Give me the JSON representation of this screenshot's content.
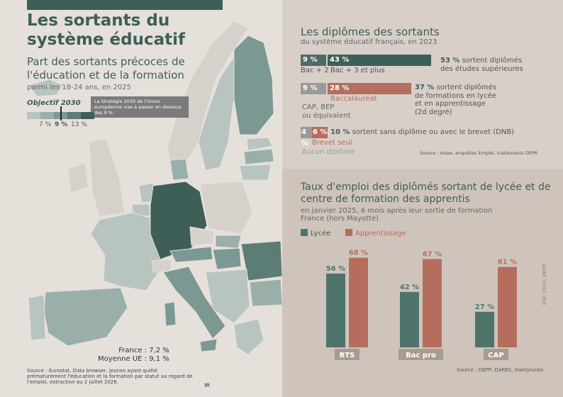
{
  "left": {
    "title": "Les sortants du système éducatif",
    "subtitle": "Part des sortants précoces de l'éducation et de la formation",
    "subnote": "parmi les 18-24 ans, en 2025",
    "objective_label": "Objectif 2030",
    "tooltip": "La Stratégie 2030 de l'Union européenne vise à passer en dessous des 9 %.",
    "legend_labels": [
      "7 %",
      "9 %",
      "13 %"
    ],
    "legend_colors": [
      "#b8c4c0",
      "#9aaeaa",
      "#7c9893",
      "#5c7c76",
      "#3d5f58"
    ],
    "france": "France : 7,2 %",
    "moyenne": "Moyenne UE : 9,1 %",
    "source": "Source : Eurostat, Data browser, jeunes ayant quitté prématurément l'éducation et la formation par statut au regard de l'emploi, extraction au 2 juillet 2026."
  },
  "diplomes": {
    "title": "Les diplômes des sortants",
    "subtitle": "du système éducatif français, en 2023",
    "row1": {
      "v1": "9 %",
      "v2": "43 %",
      "l1": "Bac + 2",
      "l2": "Bac + 3 et plus",
      "pct": "53 %",
      "desc1": " sortent diplômés",
      "desc2": "des études supérieures"
    },
    "row2": {
      "v1": "9 %",
      "v2": "28 %",
      "l1": "CAP, BEP",
      "l1b": "ou équivalent",
      "l2": "Baccalauréat",
      "pct": "37 %",
      "desc1": " sortent diplômés",
      "desc2": "de formations en lycée",
      "desc3": "et en apprentissage",
      "desc4": "(2d degré)"
    },
    "row3": {
      "v1": "4 %",
      "v2": "6 %",
      "l1": "Aucun diplôme",
      "l2": "Brevet seul",
      "pct": "10 %",
      "desc1": " sortent sans diplôme ou avec le brevet (DNB)"
    },
    "source": "Source : Insee, enquêtes Emploi, traitements DEPP."
  },
  "emploi": {
    "title": "Taux d'emploi des diplômés sortant de lycée et de centre de formation des apprentis",
    "subtitle1": "en janvier 2025, 6 mois après leur sortie de formation",
    "subtitle2": "France (hors Mayotte)",
    "legend_lycee": "Lycée",
    "legend_app": "Apprentissage",
    "source": "Source : DEPP, DARES, Inserjeunes",
    "vertical": "ENC 2026, DEPP"
  },
  "chart_data": {
    "type": "bar",
    "categories": [
      "BTS",
      "Bac pro",
      "CAP"
    ],
    "series": [
      {
        "name": "Lycée",
        "values": [
          56,
          42,
          27
        ],
        "labels": [
          "56 %",
          "42 %",
          "27 %"
        ],
        "color": "#4f746c"
      },
      {
        "name": "Apprentissage",
        "values": [
          68,
          67,
          61
        ],
        "labels": [
          "68 %",
          "67 %",
          "61 %"
        ],
        "color": "#b56e5e"
      }
    ],
    "ylim": [
      0,
      100
    ]
  }
}
